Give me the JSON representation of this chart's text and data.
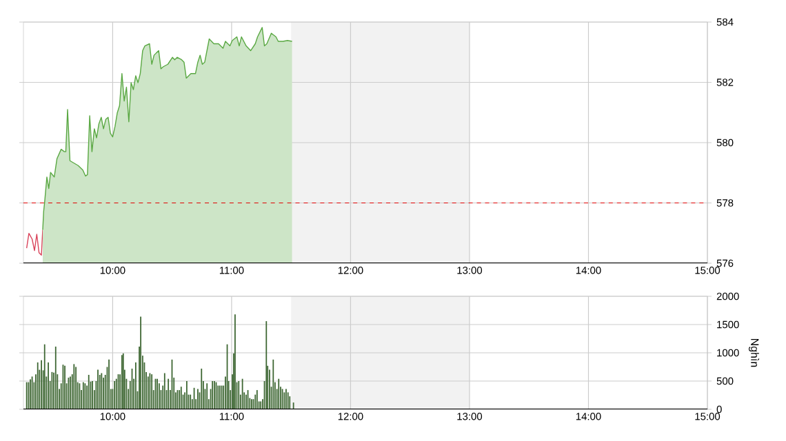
{
  "chart_data": [
    {
      "type": "line",
      "xlim": [
        9.25,
        15
      ],
      "ylim": [
        576,
        584
      ],
      "grid": true,
      "xticks": [
        {
          "value": 10,
          "label": "10:00"
        },
        {
          "value": 11,
          "label": "11:00"
        },
        {
          "value": 12,
          "label": "12:00"
        },
        {
          "value": 13,
          "label": "13:00"
        },
        {
          "value": 14,
          "label": "14:00"
        },
        {
          "value": 15,
          "label": "15:00"
        }
      ],
      "yticks": [
        576,
        578,
        580,
        582,
        584
      ],
      "ref_lines": [
        {
          "axis": "y",
          "value": 578,
          "color": "#e00000",
          "line_style": "dashed"
        }
      ],
      "bands": [
        {
          "axis": "x",
          "from": 11.5,
          "to": 13,
          "color": "#f2f2f2"
        }
      ],
      "series": [
        {
          "type": "line",
          "color": "#d9435a",
          "x": [
            9.277,
            9.296,
            9.323,
            9.343,
            9.362,
            9.381,
            9.401,
            9.412
          ],
          "values": [
            576.5,
            576.99,
            576.8,
            576.42,
            576.96,
            576.35,
            576.27,
            577.11
          ]
        },
        {
          "type": "area",
          "color": "#5aa843",
          "x": [
            9.412,
            9.42,
            9.428,
            9.447,
            9.463,
            9.478,
            9.509,
            9.532,
            9.567,
            9.594,
            9.606,
            9.621,
            9.641,
            9.71,
            9.749,
            9.772,
            9.788,
            9.807,
            9.826,
            9.846,
            9.865,
            9.884,
            9.904,
            9.923,
            9.942,
            9.962,
            9.981,
            10.0,
            10.02,
            10.039,
            10.058,
            10.078,
            10.097,
            10.116,
            10.136,
            10.155,
            10.174,
            10.194,
            10.213,
            10.232,
            10.252,
            10.271,
            10.31,
            10.329,
            10.348,
            10.368,
            10.387,
            10.406,
            10.426,
            10.464,
            10.503,
            10.522,
            10.542,
            10.58,
            10.6,
            10.619,
            10.658,
            10.696,
            10.716,
            10.735,
            10.754,
            10.774,
            10.812,
            10.851,
            10.89,
            10.928,
            10.948,
            10.986,
            11.006,
            11.044,
            11.064,
            11.083,
            11.122,
            11.16,
            11.199,
            11.218,
            11.257,
            11.276,
            11.296,
            11.334,
            11.373,
            11.392,
            11.431,
            11.47,
            11.508
          ],
          "values": [
            577.11,
            577.72,
            578.02,
            578.86,
            578.48,
            579.01,
            578.86,
            579.47,
            579.78,
            579.7,
            579.7,
            581.1,
            579.4,
            579.24,
            579.09,
            578.89,
            578.94,
            580.89,
            579.7,
            580.46,
            580.16,
            580.62,
            580.84,
            580.46,
            580.77,
            580.84,
            580.31,
            580.19,
            580.54,
            580.99,
            581.23,
            582.29,
            581.38,
            581.84,
            580.69,
            581.99,
            581.76,
            582.22,
            581.99,
            582.29,
            583.05,
            583.21,
            583.28,
            582.6,
            582.9,
            582.98,
            583.05,
            582.45,
            582.52,
            582.6,
            582.83,
            582.75,
            582.83,
            582.75,
            582.67,
            582.14,
            582.29,
            582.29,
            582.67,
            582.9,
            582.6,
            582.67,
            583.44,
            583.28,
            583.28,
            583.13,
            583.36,
            583.21,
            583.39,
            583.51,
            583.21,
            583.51,
            583.21,
            583.05,
            583.28,
            583.51,
            583.82,
            583.21,
            583.28,
            583.63,
            583.51,
            583.36,
            583.36,
            583.39,
            583.36
          ]
        }
      ]
    },
    {
      "type": "bar",
      "xlim": [
        9.25,
        15
      ],
      "ylim": [
        0,
        2000
      ],
      "grid": true,
      "ylabel": "Nghìn",
      "color": "#3d6632",
      "xticks": [
        {
          "value": 10,
          "label": "10:00"
        },
        {
          "value": 11,
          "label": "11:00"
        },
        {
          "value": 12,
          "label": "12:00"
        },
        {
          "value": 13,
          "label": "13:00"
        },
        {
          "value": 14,
          "label": "14:00"
        },
        {
          "value": 15,
          "label": "15:00"
        }
      ],
      "yticks": [
        0,
        500,
        1000,
        1500,
        2000
      ],
      "bands": [
        {
          "axis": "x",
          "from": 11.5,
          "to": 13,
          "color": "#f2f2f2"
        }
      ],
      "x": [
        9.277,
        9.293,
        9.308,
        9.323,
        9.339,
        9.354,
        9.37,
        9.385,
        9.401,
        9.416,
        9.428,
        9.443,
        9.459,
        9.474,
        9.49,
        9.505,
        9.521,
        9.536,
        9.552,
        9.567,
        9.583,
        9.598,
        9.613,
        9.629,
        9.644,
        9.66,
        9.675,
        9.691,
        9.706,
        9.722,
        9.737,
        9.753,
        9.768,
        9.784,
        9.799,
        9.815,
        9.83,
        9.846,
        9.861,
        9.876,
        9.892,
        9.907,
        9.923,
        9.938,
        9.954,
        9.969,
        9.985,
        10.0,
        10.016,
        10.031,
        10.047,
        10.062,
        10.078,
        10.089,
        10.101,
        10.116,
        10.132,
        10.147,
        10.163,
        10.178,
        10.194,
        10.209,
        10.224,
        10.236,
        10.252,
        10.267,
        10.282,
        10.298,
        10.313,
        10.329,
        10.344,
        10.36,
        10.375,
        10.391,
        10.406,
        10.422,
        10.437,
        10.453,
        10.468,
        10.484,
        10.499,
        10.515,
        10.53,
        10.545,
        10.561,
        10.576,
        10.592,
        10.607,
        10.623,
        10.638,
        10.654,
        10.669,
        10.685,
        10.7,
        10.716,
        10.731,
        10.747,
        10.762,
        10.777,
        10.793,
        10.808,
        10.824,
        10.839,
        10.855,
        10.87,
        10.886,
        10.901,
        10.917,
        10.932,
        10.948,
        10.963,
        10.975,
        10.99,
        11.006,
        11.017,
        11.029,
        11.044,
        11.06,
        11.075,
        11.091,
        11.106,
        11.122,
        11.137,
        11.153,
        11.168,
        11.183,
        11.199,
        11.214,
        11.23,
        11.245,
        11.261,
        11.276,
        11.292,
        11.303,
        11.319,
        11.334,
        11.35,
        11.365,
        11.381,
        11.396,
        11.412,
        11.427,
        11.443,
        11.458,
        11.474,
        11.489,
        11.52
      ],
      "values": [
        480,
        480,
        530,
        580,
        480,
        620,
        830,
        700,
        870,
        690,
        1150,
        580,
        830,
        500,
        660,
        650,
        1110,
        620,
        360,
        460,
        790,
        770,
        460,
        560,
        580,
        620,
        800,
        750,
        480,
        460,
        340,
        480,
        460,
        420,
        610,
        490,
        500,
        340,
        500,
        700,
        610,
        640,
        560,
        610,
        750,
        880,
        360,
        360,
        500,
        540,
        620,
        620,
        960,
        990,
        700,
        540,
        360,
        500,
        720,
        540,
        830,
        320,
        1110,
        1640,
        950,
        830,
        660,
        580,
        640,
        620,
        340,
        540,
        540,
        460,
        340,
        420,
        640,
        340,
        540,
        340,
        880,
        560,
        300,
        340,
        340,
        400,
        260,
        300,
        500,
        260,
        260,
        180,
        380,
        180,
        360,
        300,
        720,
        500,
        360,
        460,
        180,
        360,
        500,
        500,
        480,
        420,
        420,
        420,
        420,
        580,
        1150,
        500,
        340,
        620,
        990,
        1680,
        480,
        500,
        260,
        540,
        300,
        260,
        340,
        200,
        180,
        180,
        260,
        340,
        140,
        140,
        180,
        500,
        1560,
        770,
        700,
        400,
        880,
        480,
        360,
        540,
        400,
        360,
        300,
        360,
        300,
        230,
        120
      ]
    }
  ]
}
